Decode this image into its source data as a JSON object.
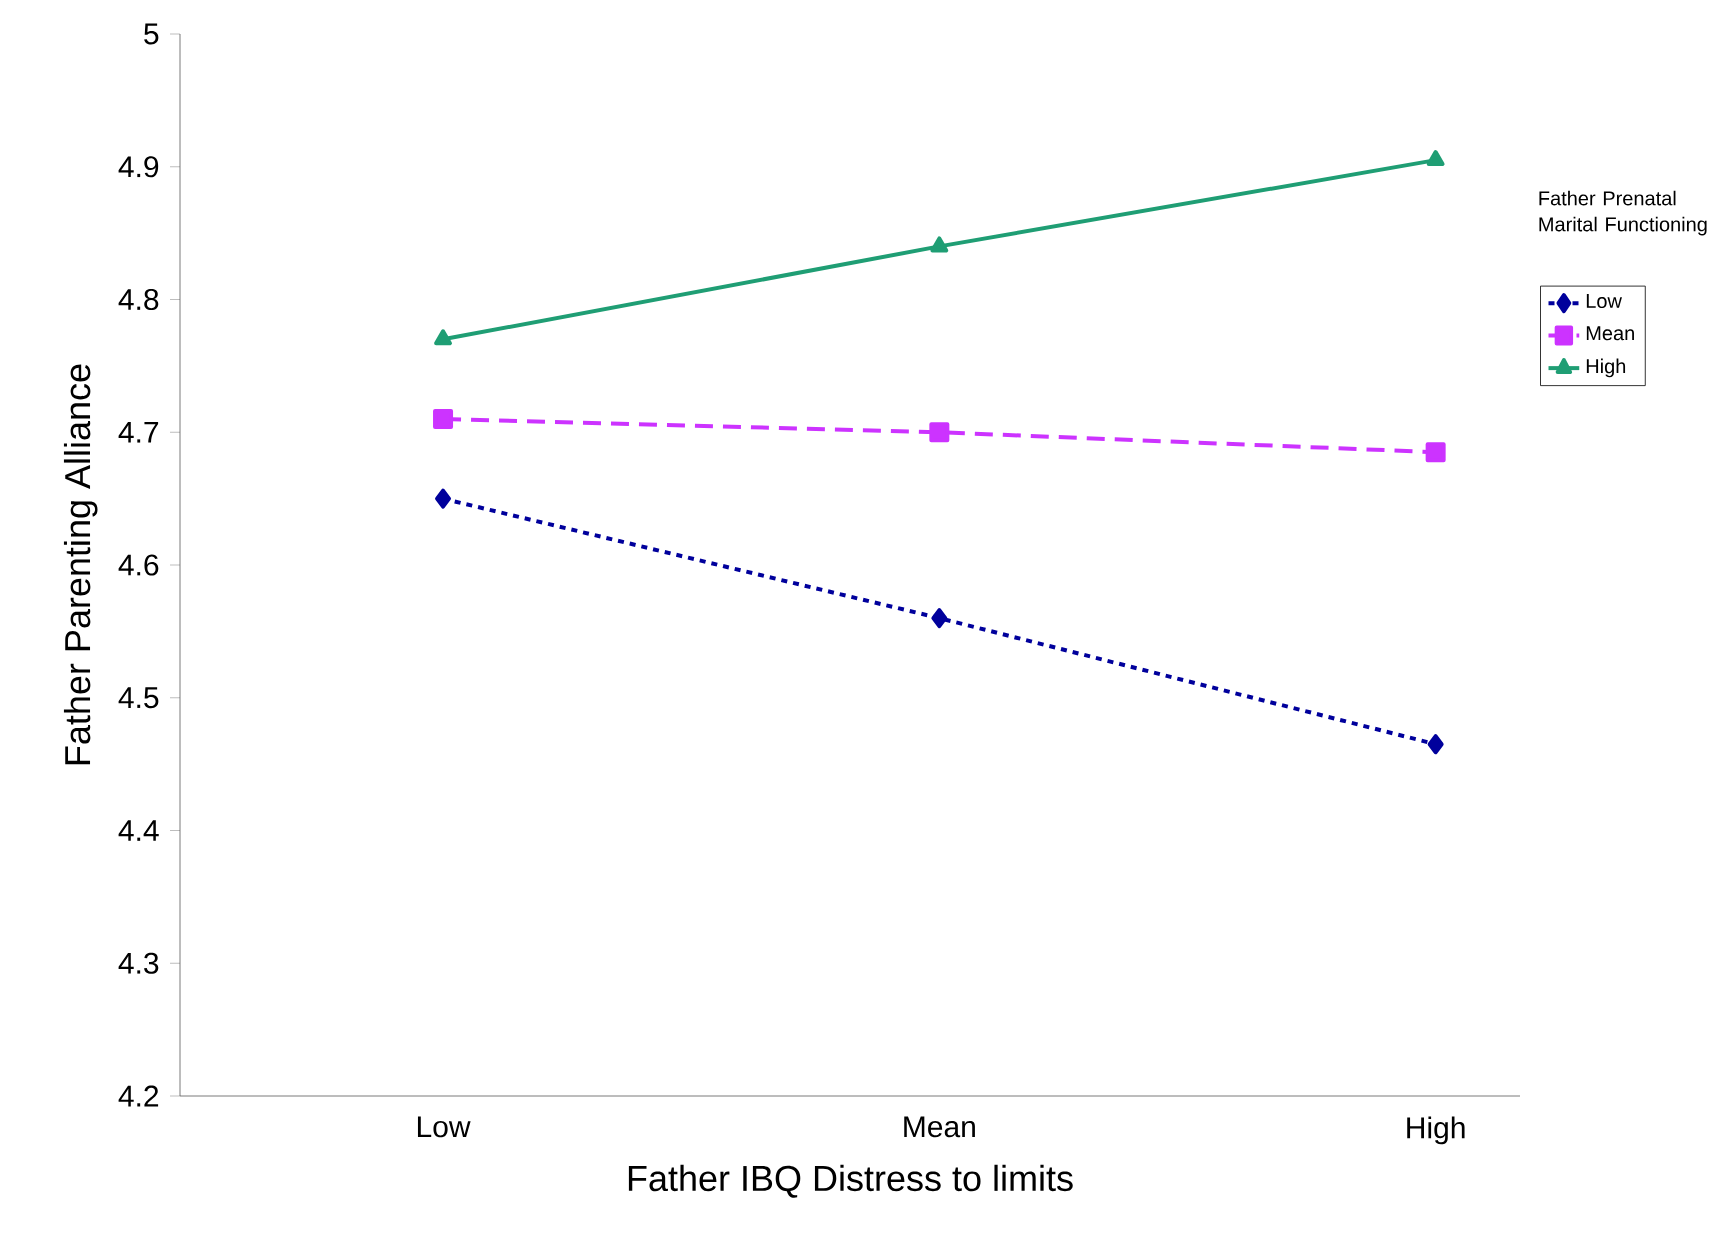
{
  "chart_data": {
    "type": "line",
    "xlabel": "Father IBQ Distress to limits",
    "ylabel": "Father Parenting Alliance",
    "legend_title": "Father Prenatal Marital Functioning",
    "legend": "right",
    "grid": false,
    "categories": [
      "Low",
      "Mean",
      "High"
    ],
    "ylim": [
      4.2,
      5
    ],
    "yticks": [
      4.2,
      4.3,
      4.4,
      4.5,
      4.6,
      4.7,
      4.8,
      4.9,
      5
    ],
    "series": [
      {
        "name": "Low",
        "color": "#00009c",
        "values": [
          4.65,
          4.56,
          4.465
        ],
        "marker": "diamond",
        "line_style": "dotted"
      },
      {
        "name": "Mean",
        "color": "#cc33ff",
        "values": [
          4.71,
          4.7,
          4.685
        ],
        "marker": "square",
        "line_style": "dashed"
      },
      {
        "name": "High",
        "color": "#1f9e74",
        "values": [
          4.77,
          4.84,
          4.905
        ],
        "marker": "triangle",
        "line_style": "solid"
      }
    ]
  }
}
